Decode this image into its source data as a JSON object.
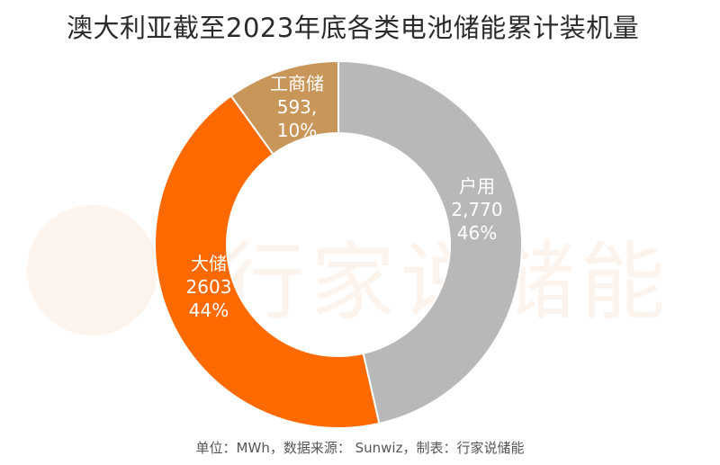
{
  "chart_data": {
    "type": "pie",
    "variant": "donut",
    "title": "澳大利亚截至2023年底各类电池储能累计装机量",
    "series": [
      {
        "name": "户用",
        "value": 2770,
        "value_label": "2,770",
        "percent_label": "46%",
        "color": "#b8b8b8"
      },
      {
        "name": "大储",
        "value": 2603,
        "value_label": "2603",
        "percent_label": "44%",
        "color": "#ff6a00"
      },
      {
        "name": "工商储",
        "value": 593,
        "value_label": "593,",
        "percent_label": "10%",
        "color": "#c9965a"
      }
    ],
    "footer": "单位：MWh，数据来源： Sunwiz，制表：行家说储能"
  },
  "watermark": {
    "text": "行家说储能"
  }
}
